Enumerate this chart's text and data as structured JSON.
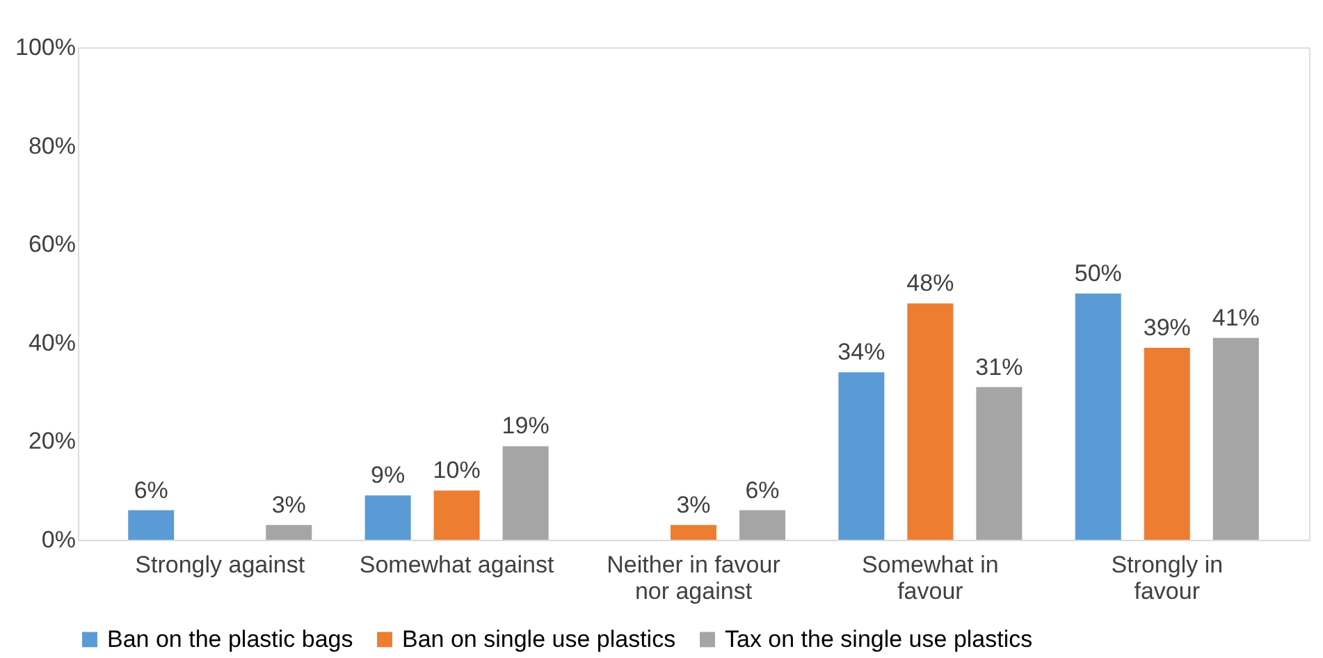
{
  "chart_data": {
    "type": "bar",
    "categories": [
      "Strongly against",
      "Somewhat against",
      "Neither in favour nor against",
      "Somewhat in favour",
      "Strongly in favour"
    ],
    "series": [
      {
        "name": "Ban on the plastic bags",
        "color": "#5b9bd5",
        "values": [
          6,
          9,
          null,
          34,
          50
        ],
        "value_labels": [
          "6%",
          "9%",
          null,
          "34%",
          "50%"
        ]
      },
      {
        "name": "Ban on single use plastics",
        "color": "#ed7d31",
        "values": [
          null,
          10,
          3,
          48,
          39
        ],
        "value_labels": [
          null,
          "10%",
          "3%",
          "48%",
          "39%"
        ]
      },
      {
        "name": "Tax on the single use plastics",
        "color": "#a5a5a5",
        "values": [
          3,
          19,
          6,
          31,
          41
        ],
        "value_labels": [
          "3%",
          "19%",
          "6%",
          "31%",
          "41%"
        ]
      }
    ],
    "ylim": [
      0,
      100
    ],
    "yticks": [
      {
        "value": 0,
        "label": "0%"
      },
      {
        "value": 20,
        "label": "20%"
      },
      {
        "value": 40,
        "label": "40%"
      },
      {
        "value": 60,
        "label": "60%"
      },
      {
        "value": 80,
        "label": "80%"
      },
      {
        "value": 100,
        "label": "100%"
      }
    ],
    "grid": false,
    "legend": "bottom"
  }
}
